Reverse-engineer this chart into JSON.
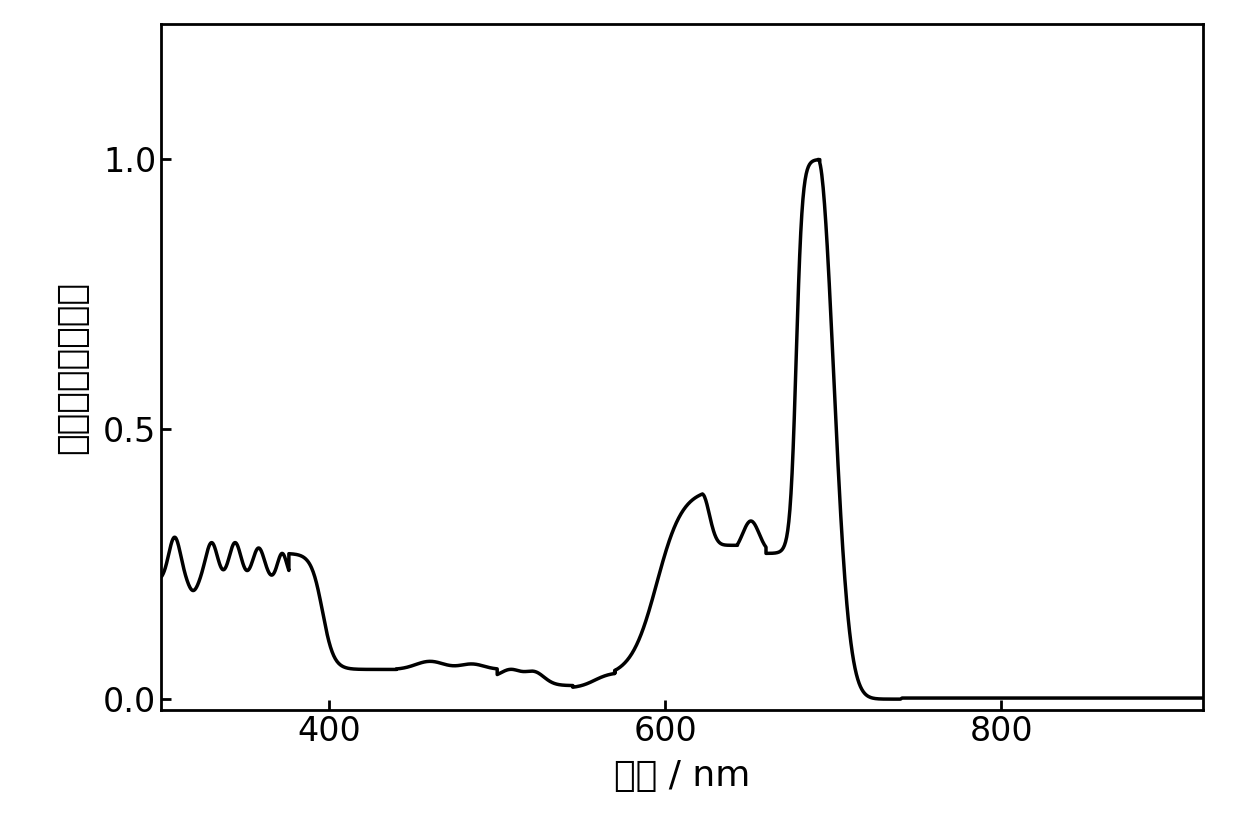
{
  "xlabel": "波长 / nm",
  "ylabel": "吸光度（归一化）",
  "xlim": [
    300,
    920
  ],
  "ylim": [
    -0.02,
    1.25
  ],
  "xticks": [
    400,
    600,
    800
  ],
  "yticks": [
    0.0,
    0.5,
    1.0
  ],
  "ytick_labels": [
    "0.0",
    "0.5",
    "1.0"
  ],
  "line_color": "#000000",
  "line_width": 2.5,
  "background_color": "#ffffff",
  "xlabel_fontsize": 26,
  "ylabel_fontsize": 26,
  "tick_fontsize": 24
}
